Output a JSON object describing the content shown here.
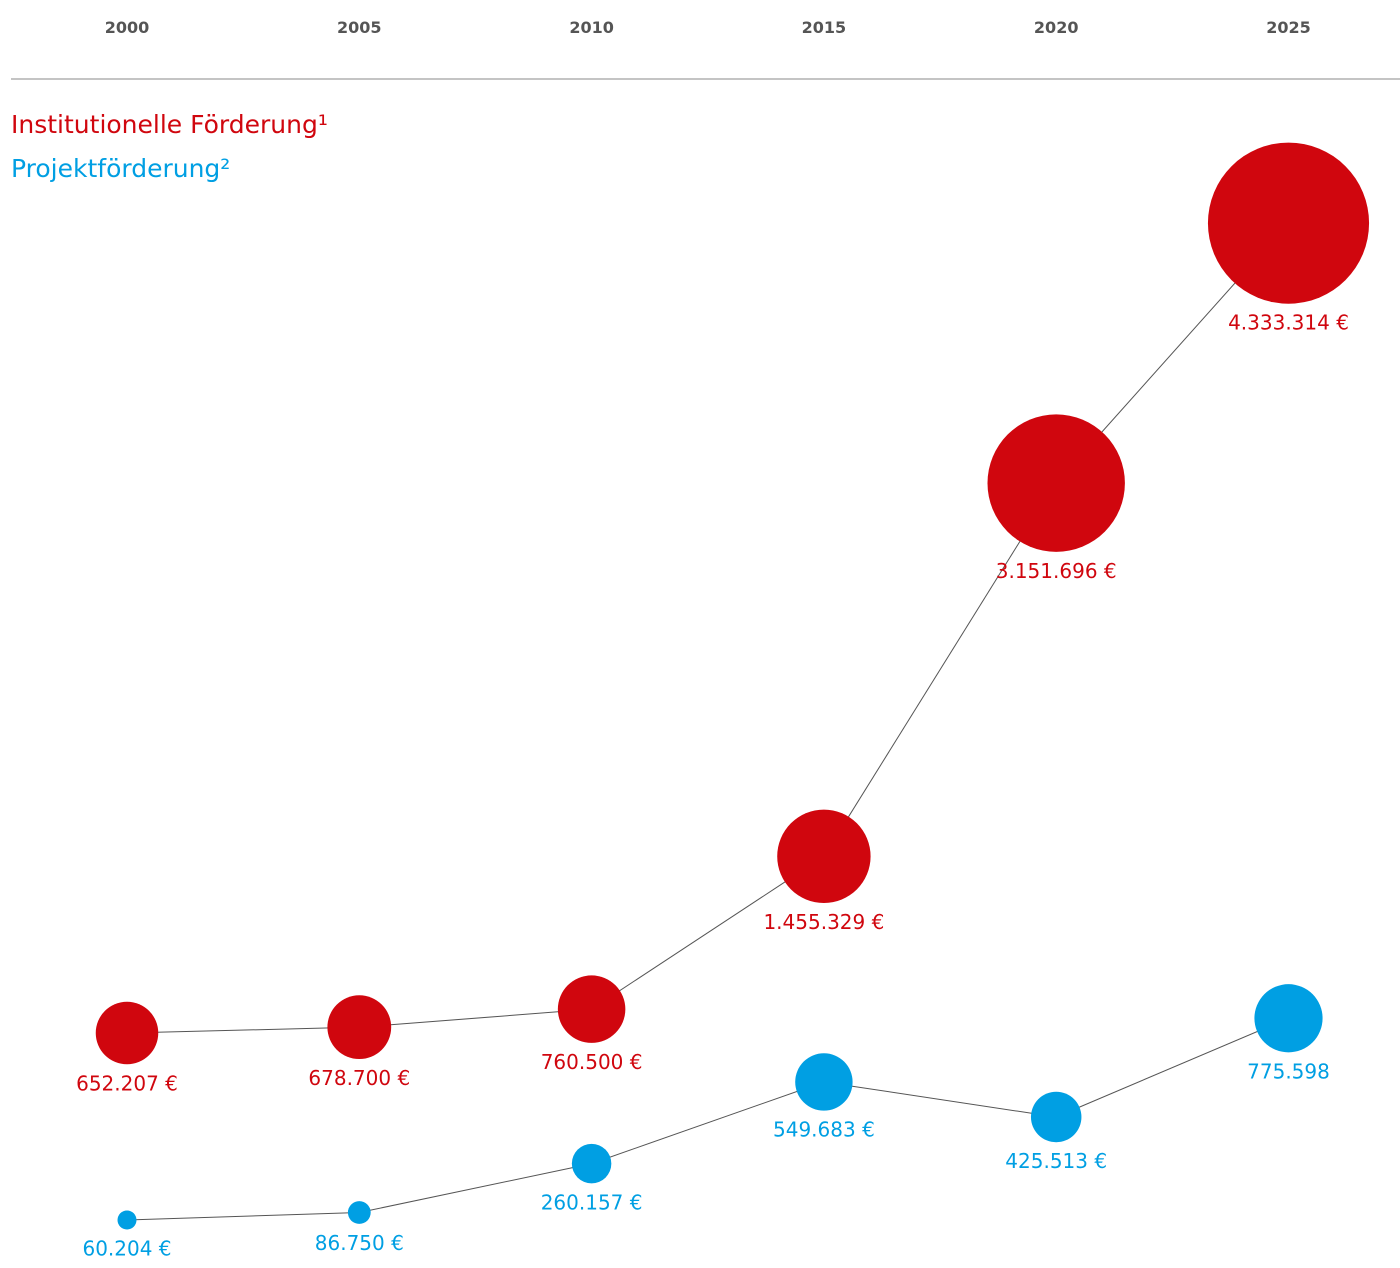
{
  "chart_data": {
    "type": "scatter",
    "x": [
      "2000",
      "2005",
      "2010",
      "2015",
      "2020",
      "2025"
    ],
    "series": [
      {
        "name": "Institutionelle Förderung¹",
        "color": "#d0060e",
        "values": [
          652207,
          678700,
          760500,
          1455329,
          3151696,
          4333314
        ],
        "labels": [
          "652.207 €",
          "678.700 €",
          "760.500 €",
          "1.455.329 €",
          "3.151.696 €",
          "4.333.314 €"
        ]
      },
      {
        "name": "Projektförderung²",
        "color": "#009fe3",
        "values": [
          60204,
          86750,
          260157,
          549683,
          425513,
          775598
        ],
        "labels": [
          "60.204 €",
          "86.750 €",
          "260.157 €",
          "549.683 €",
          "425.513 €",
          "775.598"
        ]
      }
    ],
    "legend": "top-left",
    "grid": false,
    "connector_color": "#555555",
    "axis_line_color": "#888888"
  }
}
